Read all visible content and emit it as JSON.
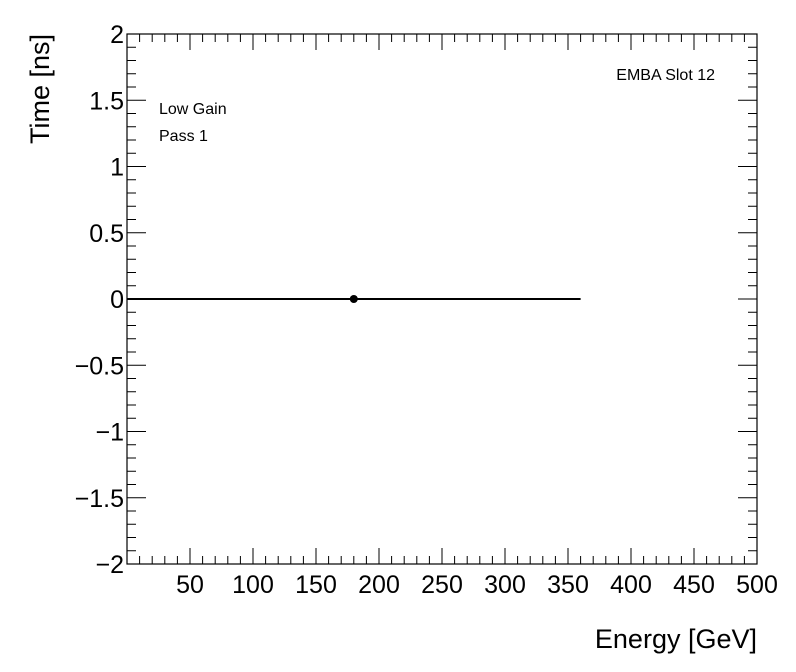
{
  "chart_data": {
    "type": "scatter",
    "xlabel": "Energy [GeV]",
    "ylabel": "Time [ns]",
    "xlim": [
      0,
      500
    ],
    "ylim": [
      -2,
      2
    ],
    "x_ticks": [
      50,
      100,
      150,
      200,
      250,
      300,
      350,
      400,
      450,
      500
    ],
    "x_tick_labels": [
      "50",
      "100",
      "150",
      "200",
      "250",
      "300",
      "350",
      "400",
      "450",
      "500"
    ],
    "y_ticks": [
      2,
      1.5,
      1,
      0.5,
      0,
      -0.5,
      -1,
      -1.5,
      -2
    ],
    "y_tick_labels": [
      "2",
      "1.5",
      "1",
      "0.5",
      "0",
      "−0.5",
      "−1",
      "−1.5",
      "−2"
    ],
    "points": [
      {
        "x": 180,
        "y": 0,
        "xerr_low": 180,
        "xerr_high": 180
      }
    ],
    "annotations": {
      "top_right": "EMBA Slot 12",
      "line1": "Low Gain",
      "line2": "Pass 1"
    },
    "grid": false,
    "marker_color": "#000000"
  }
}
